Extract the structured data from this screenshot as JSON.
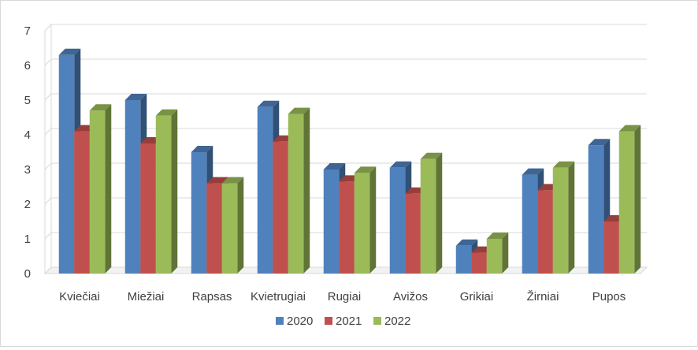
{
  "chart_data": {
    "type": "bar",
    "style": "3d-clustered-column",
    "title": "",
    "xlabel": "",
    "ylabel": "",
    "ylim": [
      0,
      7
    ],
    "y_ticks": [
      0,
      1,
      2,
      3,
      4,
      5,
      6,
      7
    ],
    "grid": true,
    "legend_position": "bottom",
    "categories": [
      "Kviečiai",
      "Miežiai",
      "Rapsas",
      "Kvietrugiai",
      "Rugiai",
      "Avižos",
      "Grikiai",
      "Žirniai",
      "Pupos"
    ],
    "series": [
      {
        "name": "2020",
        "color": "#4f81bd",
        "values": [
          6.3,
          5.0,
          3.5,
          4.8,
          3.0,
          3.05,
          0.8,
          2.85,
          3.7
        ]
      },
      {
        "name": "2021",
        "color": "#c0504d",
        "values": [
          4.1,
          3.75,
          2.6,
          3.8,
          2.65,
          2.3,
          0.6,
          2.4,
          1.5
        ]
      },
      {
        "name": "2022",
        "color": "#9bbb59",
        "values": [
          4.7,
          4.55,
          2.6,
          4.6,
          2.9,
          3.3,
          1.0,
          3.05,
          4.1
        ]
      }
    ]
  }
}
